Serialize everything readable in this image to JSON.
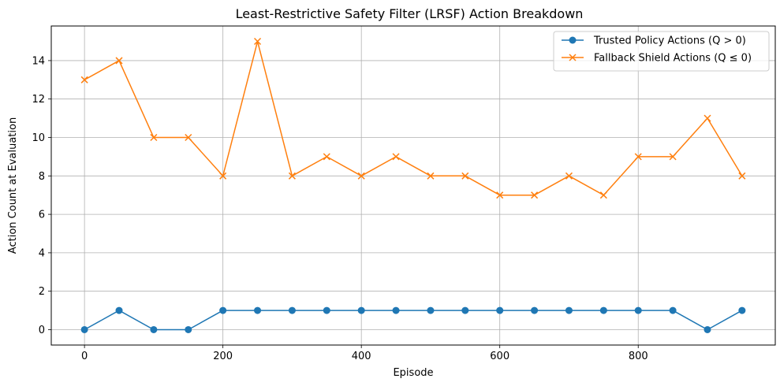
{
  "chart_data": {
    "type": "line",
    "title": "Least-Restrictive Safety Filter (LRSF) Action Breakdown",
    "xlabel": "Episode",
    "ylabel": "Action Count at Evaluation",
    "x": [
      0,
      50,
      100,
      150,
      200,
      250,
      300,
      350,
      400,
      450,
      500,
      550,
      600,
      650,
      700,
      750,
      800,
      850,
      900,
      950
    ],
    "xlim": [
      -48,
      998
    ],
    "ylim": [
      -0.8,
      15.8
    ],
    "xticks": [
      0,
      200,
      400,
      600,
      800
    ],
    "yticks": [
      0,
      2,
      4,
      6,
      8,
      10,
      12,
      14
    ],
    "grid": true,
    "legend_position": "top-right",
    "series": [
      {
        "name": "Trusted Policy Actions (Q > 0)",
        "color": "#1f77b4",
        "marker": "circle",
        "values": [
          0,
          1,
          0,
          0,
          1,
          1,
          1,
          1,
          1,
          1,
          1,
          1,
          1,
          1,
          1,
          1,
          1,
          1,
          0,
          1
        ]
      },
      {
        "name": "Fallback Shield Actions (Q ≤ 0)",
        "color": "#ff7f0e",
        "marker": "x",
        "values": [
          13,
          14,
          10,
          10,
          8,
          15,
          8,
          9,
          8,
          9,
          8,
          8,
          7,
          7,
          8,
          7,
          9,
          9,
          11,
          8
        ]
      }
    ]
  }
}
